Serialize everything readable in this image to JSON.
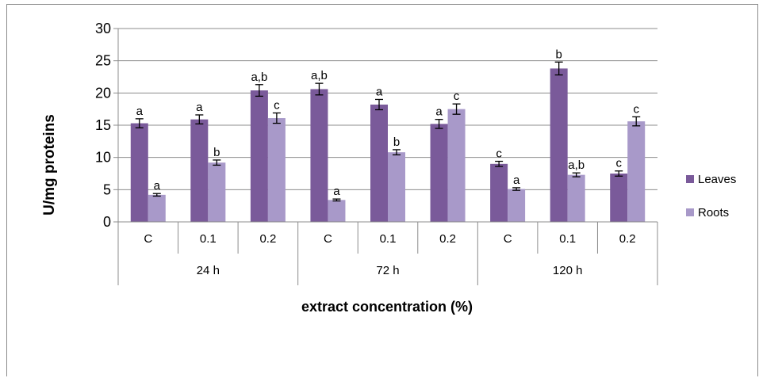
{
  "chart_data": {
    "type": "bar",
    "title": "",
    "ylabel": "U/mg proteins",
    "xlabel": "extract concentration (%)",
    "ylim": [
      0,
      30
    ],
    "yticks": [
      "0",
      "5",
      "10",
      "15",
      "20",
      "25",
      "30"
    ],
    "grid": true,
    "legend_position": "right",
    "categories": [
      "C",
      "0.1",
      "0.2",
      "C",
      "0.1",
      "0.2",
      "C",
      "0.1",
      "0.2"
    ],
    "groups": [
      "24 h",
      "72 h",
      "120 h"
    ],
    "series": [
      {
        "name": "Leaves",
        "color": "#7a5a9a",
        "values": [
          15.3,
          15.9,
          20.4,
          20.6,
          18.2,
          15.2,
          9.0,
          23.8,
          7.5
        ],
        "errors": [
          0.7,
          0.7,
          0.9,
          0.9,
          0.8,
          0.7,
          0.4,
          1.0,
          0.4
        ],
        "labels": [
          "a",
          "a",
          "a,b",
          "a,b",
          "a",
          "a",
          "c",
          "b",
          "c"
        ]
      },
      {
        "name": "Roots",
        "color": "#a899c9",
        "values": [
          4.2,
          9.2,
          16.1,
          3.4,
          10.8,
          17.5,
          5.1,
          7.3,
          15.6
        ],
        "errors": [
          0.2,
          0.4,
          0.8,
          0.15,
          0.4,
          0.8,
          0.2,
          0.3,
          0.7
        ],
        "labels": [
          "a",
          "b",
          "c",
          "a",
          "b",
          "c",
          "a",
          "a,b",
          "c"
        ]
      }
    ]
  }
}
